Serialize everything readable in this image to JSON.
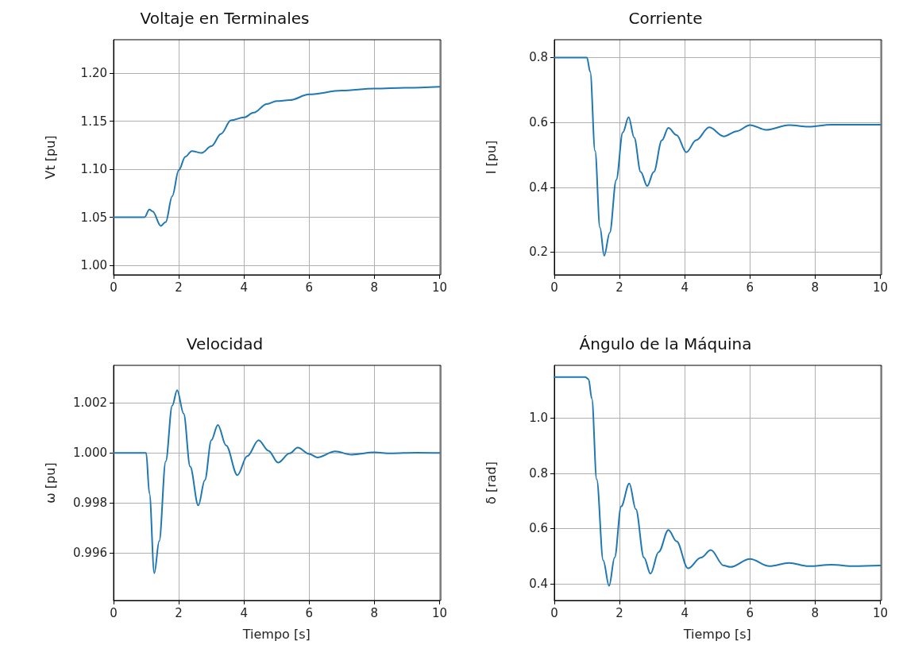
{
  "chart_data": [
    {
      "type": "line",
      "title": "Voltaje en Terminales",
      "ylabel": "Vt [pu]",
      "xlim": [
        0,
        10
      ],
      "xticks": [
        0,
        2,
        4,
        6,
        8,
        10
      ],
      "ylim": [
        0.99,
        1.235
      ],
      "yticks": [
        {
          "value": 1,
          "label": "1.00"
        },
        1.05,
        {
          "value": 1.1,
          "label": "1.10"
        },
        1.15,
        {
          "value": 1.2,
          "label": "1.20"
        }
      ],
      "grid": true,
      "marker": "none",
      "line_style": "solid",
      "series": [
        {
          "color": "#1f77b4",
          "x": [
            0,
            0.95,
            1.1,
            1.2,
            1.45,
            1.6,
            1.8,
            2.0,
            2.2,
            2.4,
            2.7,
            3.0,
            3.3,
            3.6,
            4.0,
            4.3,
            4.7,
            5.0,
            5.4,
            6.0,
            7.0,
            8.0,
            9.0,
            10
          ],
          "values": [
            1.05,
            1.05,
            1.058,
            1.056,
            1.041,
            1.045,
            1.072,
            1.099,
            1.113,
            1.119,
            1.117,
            1.124,
            1.137,
            1.151,
            1.154,
            1.159,
            1.168,
            1.171,
            1.172,
            1.178,
            1.182,
            1.184,
            1.185,
            1.186
          ]
        }
      ]
    },
    {
      "type": "line",
      "title": "Corriente",
      "ylabel": "I [pu]",
      "xlim": [
        0,
        10
      ],
      "xticks": [
        0,
        2,
        4,
        6,
        8,
        10
      ],
      "ylim": [
        0.13,
        0.855
      ],
      "yticks": [
        0.2,
        0.4,
        0.6,
        0.8
      ],
      "grid": true,
      "marker": "none",
      "line_style": "solid",
      "series": [
        {
          "color": "#1f77b4",
          "x": [
            0,
            1.0,
            1.1,
            1.25,
            1.4,
            1.53,
            1.7,
            1.9,
            2.1,
            2.28,
            2.45,
            2.65,
            2.85,
            3.05,
            3.3,
            3.5,
            3.75,
            4.05,
            4.35,
            4.75,
            5.2,
            5.6,
            6.0,
            6.5,
            7.2,
            7.8,
            8.5,
            10
          ],
          "values": [
            0.8,
            0.8,
            0.756,
            0.512,
            0.276,
            0.189,
            0.26,
            0.423,
            0.569,
            0.616,
            0.553,
            0.447,
            0.404,
            0.447,
            0.545,
            0.583,
            0.561,
            0.508,
            0.545,
            0.585,
            0.557,
            0.573,
            0.592,
            0.577,
            0.592,
            0.587,
            0.593,
            0.593
          ]
        }
      ]
    },
    {
      "type": "line",
      "title": "Velocidad",
      "xlabel": "Tiempo [s]",
      "ylabel": "ω [pu]",
      "xlim": [
        0,
        10
      ],
      "xticks": [
        0,
        2,
        4,
        6,
        8,
        10
      ],
      "ylim": [
        0.9941,
        1.0035
      ],
      "yticks": [
        0.996,
        0.998,
        {
          "value": 1,
          "label": "1.000"
        },
        1.002
      ],
      "grid": true,
      "marker": "none",
      "line_style": "solid",
      "series": [
        {
          "color": "#1f77b4",
          "x": [
            0,
            1.0,
            1.1,
            1.25,
            1.4,
            1.6,
            1.8,
            1.95,
            2.15,
            2.35,
            2.6,
            2.8,
            3.0,
            3.2,
            3.45,
            3.8,
            4.1,
            4.45,
            4.75,
            5.05,
            5.4,
            5.65,
            6.0,
            6.25,
            6.8,
            7.3,
            8.0,
            8.5,
            9.3,
            10
          ],
          "values": [
            1,
            1,
            0.99838,
            0.99519,
            0.99647,
            0.99966,
            1.00189,
            1.00251,
            1.00157,
            0.99945,
            0.9979,
            0.99891,
            1.00051,
            1.00112,
            1.0003,
            0.99911,
            0.99987,
            1.00051,
            1.00009,
            0.99961,
            0.99998,
            1.00021,
            0.99996,
            0.99982,
            1.00006,
            0.99993,
            1.00002,
            0.99998,
            1.00001,
            1
          ]
        }
      ]
    },
    {
      "type": "line",
      "title": "Ángulo de la Máquina",
      "xlabel": "Tiempo [s]",
      "ylabel": "δ [rad]",
      "xlim": [
        0,
        10
      ],
      "xticks": [
        0,
        2,
        4,
        6,
        8,
        10
      ],
      "ylim": [
        0.34,
        1.19
      ],
      "yticks": [
        0.4,
        0.6,
        0.8,
        {
          "value": 1,
          "label": "1.0"
        }
      ],
      "grid": true,
      "marker": "none",
      "line_style": "solid",
      "series": [
        {
          "color": "#1f77b4",
          "x": [
            0,
            0.95,
            1.05,
            1.15,
            1.3,
            1.5,
            1.68,
            1.85,
            2.05,
            2.3,
            2.5,
            2.75,
            2.95,
            3.2,
            3.5,
            3.75,
            4.1,
            4.5,
            4.8,
            5.2,
            5.4,
            6.0,
            6.6,
            7.2,
            7.8,
            8.5,
            9.2,
            10
          ],
          "values": [
            1.148,
            1.148,
            1.14,
            1.07,
            0.778,
            0.485,
            0.393,
            0.495,
            0.68,
            0.763,
            0.67,
            0.495,
            0.437,
            0.515,
            0.595,
            0.554,
            0.456,
            0.495,
            0.522,
            0.466,
            0.461,
            0.49,
            0.464,
            0.476,
            0.464,
            0.469,
            0.464,
            0.466
          ]
        }
      ]
    }
  ]
}
